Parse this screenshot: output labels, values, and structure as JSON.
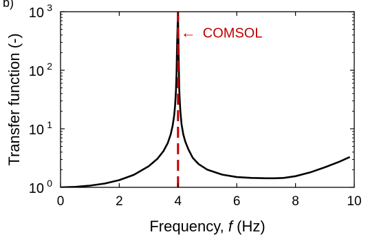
{
  "chart_data": {
    "type": "line",
    "panel_label": "b)",
    "title": "",
    "xlabel": {
      "main": "Frequency, ",
      "variable": "f",
      "unit": " (Hz)"
    },
    "ylabel": "Transfer function (-)",
    "xlim": [
      0,
      10
    ],
    "ylim": [
      1,
      1000
    ],
    "yscale": "log",
    "grid": false,
    "x_ticks": [
      {
        "value": 0,
        "label": "0"
      },
      {
        "value": 2,
        "label": "2"
      },
      {
        "value": 4,
        "label": "4"
      },
      {
        "value": 6,
        "label": "6"
      },
      {
        "value": 8,
        "label": "8"
      },
      {
        "value": 10,
        "label": "10"
      }
    ],
    "y_ticks": [
      {
        "value": 1,
        "base": "10",
        "exp": "0"
      },
      {
        "value": 10,
        "base": "10",
        "exp": "1"
      },
      {
        "value": 100,
        "base": "10",
        "exp": "2"
      },
      {
        "value": 1000,
        "base": "10",
        "exp": "3"
      }
    ],
    "series": [
      {
        "color": "#000000",
        "x": [
          0,
          0.5,
          1,
          1.5,
          2,
          2.5,
          3,
          3.3,
          3.5,
          3.65,
          3.75,
          3.82,
          3.87,
          3.9,
          3.93,
          3.95,
          3.97,
          4.0,
          4.02,
          4.04,
          4.06,
          4.08,
          4.12,
          4.18,
          4.25,
          4.35,
          4.5,
          4.7,
          5,
          5.5,
          6,
          6.5,
          7,
          7.3,
          7.6,
          8,
          8.5,
          9,
          9.5,
          9.85
        ],
        "y": [
          1.0,
          1.02,
          1.07,
          1.16,
          1.33,
          1.64,
          2.29,
          3.08,
          4.12,
          5.7,
          8.0,
          11.5,
          17,
          25,
          45,
          90,
          300,
          1000,
          200,
          50,
          30,
          20,
          12,
          8,
          6,
          4.5,
          3.2,
          2.5,
          2.0,
          1.65,
          1.5,
          1.45,
          1.43,
          1.43,
          1.45,
          1.55,
          1.8,
          2.2,
          2.75,
          3.3
        ]
      },
      {
        "name": "COMSOL",
        "color": "#c00000",
        "style": "dashed",
        "x": [
          4.0,
          4.0
        ],
        "y": [
          1,
          1000
        ]
      }
    ],
    "annotation": {
      "text": "COMSOL",
      "arrow": "←",
      "at_x": 4.0,
      "at_y": 450,
      "color": "#c00000"
    }
  }
}
